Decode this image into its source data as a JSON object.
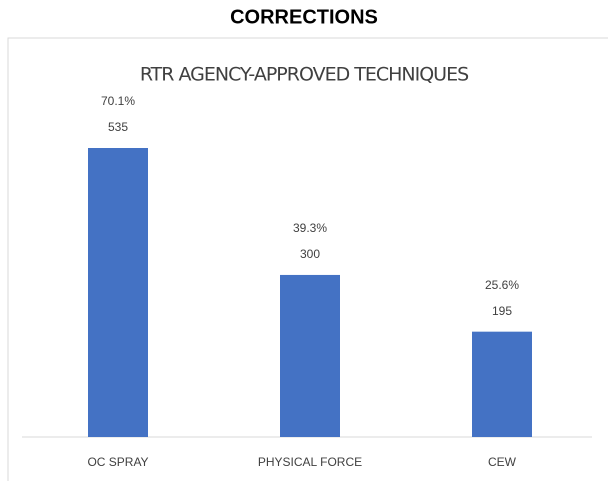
{
  "header": {
    "title": "CORRECTIONS"
  },
  "chart_data": {
    "type": "bar",
    "title": "RTR AGENCY-APPROVED TECHNIQUES",
    "categories": [
      "OC SPRAY",
      "PHYSICAL FORCE",
      "CEW"
    ],
    "values": [
      535,
      300,
      195
    ],
    "percent_labels": [
      "70.1%",
      "39.3%",
      "25.6%"
    ],
    "color": "#4472c4"
  }
}
